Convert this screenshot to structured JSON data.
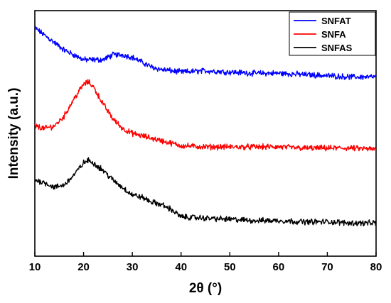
{
  "chart_data": {
    "type": "line",
    "xlabel": "2θ (°)",
    "ylabel": "Intensity (a.u.)",
    "xlim": [
      10,
      80
    ],
    "x_ticks": [
      "10",
      "20",
      "30",
      "40",
      "50",
      "60",
      "70",
      "80"
    ],
    "y_ticks_labeled": false,
    "y_units": "arbitrary (curves vertically offset)",
    "grid": false,
    "legend_position": "top-right",
    "series": [
      {
        "name": "SNFAT",
        "color": "#0000ff",
        "x": [
          10,
          12,
          14,
          16,
          18,
          20,
          22,
          24,
          26,
          28,
          30,
          32,
          34,
          36,
          38,
          40,
          45,
          50,
          55,
          60,
          65,
          70,
          75,
          80
        ],
        "y": [
          0.93,
          0.9,
          0.87,
          0.84,
          0.82,
          0.8,
          0.8,
          0.8,
          0.82,
          0.82,
          0.81,
          0.79,
          0.77,
          0.76,
          0.755,
          0.75,
          0.755,
          0.75,
          0.745,
          0.745,
          0.74,
          0.735,
          0.73,
          0.73
        ]
      },
      {
        "name": "SNFA",
        "color": "#ff0000",
        "x": [
          10,
          12,
          14,
          16,
          18,
          20,
          21,
          22,
          24,
          26,
          28,
          30,
          32,
          34,
          36,
          38,
          40,
          45,
          50,
          55,
          60,
          65,
          70,
          75,
          80
        ],
        "y": [
          0.53,
          0.52,
          0.53,
          0.57,
          0.64,
          0.7,
          0.71,
          0.69,
          0.62,
          0.56,
          0.52,
          0.5,
          0.49,
          0.48,
          0.47,
          0.46,
          0.45,
          0.445,
          0.445,
          0.445,
          0.445,
          0.44,
          0.44,
          0.44,
          0.435
        ]
      },
      {
        "name": "SNFAS",
        "color": "#000000",
        "x": [
          10,
          12,
          14,
          16,
          18,
          20,
          21,
          22,
          24,
          26,
          28,
          30,
          32,
          34,
          36,
          38,
          40,
          45,
          50,
          55,
          60,
          65,
          70,
          75,
          80
        ],
        "y": [
          0.31,
          0.3,
          0.28,
          0.29,
          0.33,
          0.38,
          0.39,
          0.38,
          0.35,
          0.31,
          0.28,
          0.25,
          0.24,
          0.22,
          0.21,
          0.19,
          0.16,
          0.155,
          0.15,
          0.145,
          0.145,
          0.14,
          0.14,
          0.135,
          0.135
        ]
      }
    ]
  }
}
